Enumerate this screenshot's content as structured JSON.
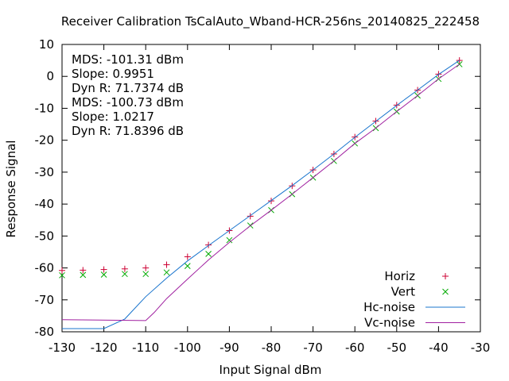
{
  "chart_data": {
    "type": "scatter",
    "title": "Receiver Calibration TsCalAuto_Wband-HCR-256ns_20140825_222458",
    "xlabel": "Input Signal dBm",
    "ylabel": "Response Signal",
    "xlim": [
      -130,
      -30
    ],
    "ylim": [
      -80,
      10
    ],
    "xticks": [
      -130,
      -120,
      -110,
      -100,
      -90,
      -80,
      -70,
      -60,
      -50,
      -40,
      -30
    ],
    "yticks": [
      -80,
      -70,
      -60,
      -50,
      -40,
      -30,
      -20,
      -10,
      0,
      10
    ],
    "grid": false,
    "legend_position": "bottom-right",
    "annotations": [
      {
        "text": "MDS: -101.31 dBm",
        "color": "#ff0000"
      },
      {
        "text": "Slope: 0.9951",
        "color": "#ff0000"
      },
      {
        "text": "Dyn R: 71.7374 dB",
        "color": "#ff0000"
      },
      {
        "text": "MDS: -100.73 dBm",
        "color": "#00b000"
      },
      {
        "text": "Slope: 1.0217",
        "color": "#00b000"
      },
      {
        "text": "Dyn R: 71.8396 dB",
        "color": "#00b000"
      }
    ],
    "series": [
      {
        "name": "Horiz",
        "kind": "points",
        "marker": "plus",
        "color": "#cc0033",
        "x": [
          -130,
          -125,
          -120,
          -115,
          -110,
          -105,
          -100,
          -95,
          -90,
          -85,
          -80,
          -75,
          -70,
          -65,
          -60,
          -55,
          -50,
          -45,
          -40,
          -35
        ],
        "y": [
          -60.8,
          -60.7,
          -60.5,
          -60.3,
          -60.0,
          -59.0,
          -56.5,
          -52.8,
          -48.3,
          -43.8,
          -39.0,
          -34.3,
          -29.3,
          -24.3,
          -19.0,
          -14.0,
          -9.0,
          -4.3,
          0.7,
          5.0
        ]
      },
      {
        "name": "Vert",
        "kind": "points",
        "marker": "cross",
        "color": "#00aa00",
        "x": [
          -130,
          -125,
          -120,
          -115,
          -110,
          -105,
          -100,
          -95,
          -90,
          -85,
          -80,
          -75,
          -70,
          -65,
          -60,
          -55,
          -50,
          -45,
          -40,
          -35
        ],
        "y": [
          -62.3,
          -62.2,
          -62.1,
          -61.9,
          -61.9,
          -61.4,
          -59.4,
          -55.6,
          -51.3,
          -46.7,
          -41.9,
          -36.9,
          -31.7,
          -26.5,
          -21.0,
          -16.2,
          -11.0,
          -6.0,
          -0.8,
          3.8
        ]
      },
      {
        "name": "Hc-noise",
        "kind": "line",
        "color": "#1874cd",
        "x": [
          -130,
          -120,
          -115,
          -110,
          -105,
          -100,
          -95,
          -90,
          -85,
          -80,
          -75,
          -70,
          -65,
          -60,
          -55,
          -50,
          -45,
          -40,
          -35
        ],
        "y": [
          -79.0,
          -79.0,
          -76.0,
          -69.0,
          -63.2,
          -57.8,
          -53.0,
          -48.3,
          -43.6,
          -38.9,
          -34.2,
          -29.3,
          -24.3,
          -19.1,
          -14.1,
          -9.1,
          -4.3,
          0.6,
          5.0
        ]
      },
      {
        "name": "Vc-noise",
        "kind": "line",
        "color": "#a020a0",
        "x": [
          -130,
          -110,
          -108,
          -105,
          -100,
          -95,
          -90,
          -85,
          -80,
          -75,
          -70,
          -65,
          -60,
          -55,
          -50,
          -45,
          -40,
          -35
        ],
        "y": [
          -76.2,
          -76.5,
          -74.0,
          -69.6,
          -63.5,
          -57.5,
          -52.0,
          -46.8,
          -41.9,
          -36.9,
          -31.7,
          -26.5,
          -21.0,
          -16.2,
          -11.0,
          -6.0,
          -0.8,
          3.8
        ]
      }
    ]
  }
}
